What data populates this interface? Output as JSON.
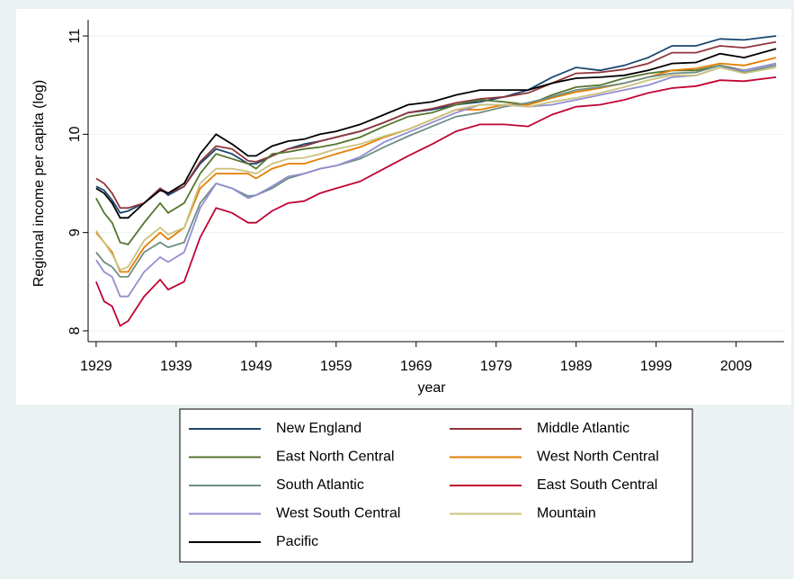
{
  "chart_data": {
    "type": "line",
    "xlabel": "year",
    "ylabel": "Regional income per capita (log)",
    "x": [
      1929,
      1930,
      1931,
      1932,
      1933,
      1935,
      1937,
      1938,
      1940,
      1942,
      1944,
      1946,
      1948,
      1949,
      1951,
      1953,
      1955,
      1957,
      1959,
      1962,
      1965,
      1968,
      1971,
      1974,
      1977,
      1980,
      1983,
      1986,
      1989,
      1992,
      1995,
      1998,
      2001,
      2004,
      2007,
      2010,
      2014
    ],
    "xlim": [
      1928,
      2015
    ],
    "xticks": [
      1929,
      1939,
      1949,
      1959,
      1969,
      1979,
      1989,
      1999,
      2009
    ],
    "ylim": [
      7.89,
      11.11
    ],
    "yticks": [
      8,
      9,
      10,
      11
    ],
    "grid": true,
    "legend": "bottom",
    "series": [
      {
        "name": "New England",
        "color": "#1a476f",
        "values": [
          9.47,
          9.43,
          9.33,
          9.2,
          9.22,
          9.3,
          9.45,
          9.38,
          9.47,
          9.7,
          9.85,
          9.8,
          9.7,
          9.7,
          9.78,
          9.85,
          9.9,
          9.93,
          9.97,
          10.03,
          10.12,
          10.22,
          10.25,
          10.3,
          10.33,
          10.38,
          10.45,
          10.58,
          10.68,
          10.65,
          10.7,
          10.78,
          10.9,
          10.9,
          10.97,
          10.96,
          11.0
        ]
      },
      {
        "name": "Middle Atlantic",
        "color": "#90353b",
        "values": [
          9.55,
          9.5,
          9.4,
          9.25,
          9.25,
          9.3,
          9.45,
          9.4,
          9.47,
          9.72,
          9.88,
          9.85,
          9.73,
          9.72,
          9.78,
          9.85,
          9.88,
          9.93,
          9.97,
          10.03,
          10.12,
          10.22,
          10.26,
          10.32,
          10.36,
          10.38,
          10.42,
          10.52,
          10.62,
          10.63,
          10.66,
          10.72,
          10.83,
          10.83,
          10.9,
          10.88,
          10.94
        ]
      },
      {
        "name": "East North Central",
        "color": "#55752f",
        "values": [
          9.35,
          9.2,
          9.1,
          8.9,
          8.88,
          9.1,
          9.3,
          9.2,
          9.3,
          9.6,
          9.8,
          9.75,
          9.7,
          9.65,
          9.8,
          9.82,
          9.85,
          9.87,
          9.9,
          9.97,
          10.08,
          10.18,
          10.22,
          10.3,
          10.35,
          10.33,
          10.3,
          10.4,
          10.48,
          10.5,
          10.57,
          10.62,
          10.65,
          10.65,
          10.7,
          10.65,
          10.72
        ]
      },
      {
        "name": "West North Central",
        "color": "#e37e00",
        "values": [
          9.0,
          8.9,
          8.8,
          8.6,
          8.6,
          8.85,
          9.0,
          8.93,
          9.05,
          9.45,
          9.6,
          9.6,
          9.6,
          9.55,
          9.65,
          9.7,
          9.7,
          9.75,
          9.8,
          9.87,
          9.97,
          10.05,
          10.15,
          10.25,
          10.25,
          10.3,
          10.3,
          10.37,
          10.43,
          10.47,
          10.52,
          10.58,
          10.65,
          10.67,
          10.72,
          10.7,
          10.78
        ]
      },
      {
        "name": "South Atlantic",
        "color": "#6e8e84",
        "values": [
          8.8,
          8.7,
          8.65,
          8.55,
          8.55,
          8.8,
          8.9,
          8.85,
          8.9,
          9.3,
          9.5,
          9.45,
          9.37,
          9.38,
          9.45,
          9.55,
          9.6,
          9.65,
          9.68,
          9.75,
          9.87,
          9.98,
          10.08,
          10.18,
          10.22,
          10.28,
          10.32,
          10.38,
          10.45,
          10.48,
          10.52,
          10.58,
          10.62,
          10.63,
          10.7,
          10.63,
          10.7
        ]
      },
      {
        "name": "East South Central",
        "color": "#c10534",
        "values": [
          8.5,
          8.3,
          8.25,
          8.05,
          8.1,
          8.35,
          8.52,
          8.42,
          8.5,
          8.95,
          9.25,
          9.2,
          9.1,
          9.1,
          9.22,
          9.3,
          9.32,
          9.4,
          9.45,
          9.52,
          9.65,
          9.78,
          9.9,
          10.03,
          10.1,
          10.1,
          10.08,
          10.2,
          10.28,
          10.3,
          10.35,
          10.42,
          10.47,
          10.49,
          10.55,
          10.54,
          10.58
        ]
      },
      {
        "name": "West South Central",
        "color": "#938dd2",
        "values": [
          8.72,
          8.6,
          8.55,
          8.35,
          8.35,
          8.6,
          8.75,
          8.7,
          8.8,
          9.25,
          9.5,
          9.45,
          9.35,
          9.38,
          9.47,
          9.57,
          9.6,
          9.65,
          9.68,
          9.77,
          9.92,
          10.02,
          10.12,
          10.22,
          10.3,
          10.3,
          10.28,
          10.3,
          10.35,
          10.4,
          10.45,
          10.5,
          10.58,
          10.6,
          10.68,
          10.65,
          10.72
        ]
      },
      {
        "name": "Mountain",
        "color": "#cac27e",
        "values": [
          9.02,
          8.9,
          8.78,
          8.62,
          8.65,
          8.92,
          9.05,
          8.98,
          9.05,
          9.5,
          9.65,
          9.65,
          9.62,
          9.6,
          9.7,
          9.75,
          9.76,
          9.8,
          9.85,
          9.9,
          9.98,
          10.05,
          10.15,
          10.25,
          10.3,
          10.3,
          10.28,
          10.33,
          10.37,
          10.42,
          10.48,
          10.55,
          10.6,
          10.6,
          10.68,
          10.62,
          10.68
        ]
      },
      {
        "name": "Pacific",
        "color": "#000000",
        "values": [
          9.45,
          9.4,
          9.3,
          9.15,
          9.15,
          9.3,
          9.43,
          9.4,
          9.5,
          9.8,
          10.0,
          9.9,
          9.78,
          9.78,
          9.88,
          9.93,
          9.95,
          10.0,
          10.03,
          10.1,
          10.2,
          10.3,
          10.33,
          10.4,
          10.45,
          10.45,
          10.45,
          10.52,
          10.57,
          10.58,
          10.6,
          10.65,
          10.72,
          10.73,
          10.82,
          10.78,
          10.87
        ]
      }
    ]
  }
}
